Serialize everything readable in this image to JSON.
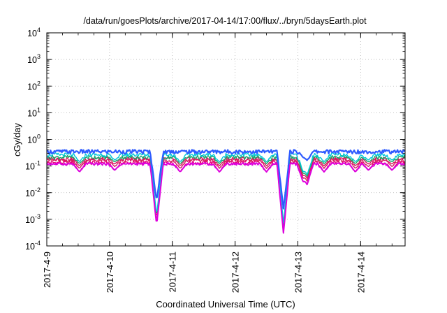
{
  "chart_data": {
    "type": "line",
    "title": "/data/run/goesPlots/archive/2017-04-14/17:00/flux/../bryn/5daysEarth.plot",
    "xlabel": "Coordinated Universal Time (UTC)",
    "ylabel": "cGy/day",
    "yscale": "log",
    "ylim": [
      0.0001,
      10000
    ],
    "y_ticks": [
      {
        "base": "10",
        "exp": "-4",
        "value": 0.0001
      },
      {
        "base": "10",
        "exp": "-3",
        "value": 0.001
      },
      {
        "base": "10",
        "exp": "-2",
        "value": 0.01
      },
      {
        "base": "10",
        "exp": "-1",
        "value": 0.1
      },
      {
        "base": "10",
        "exp": "0",
        "value": 1
      },
      {
        "base": "10",
        "exp": "1",
        "value": 10
      },
      {
        "base": "10",
        "exp": "2",
        "value": 100
      },
      {
        "base": "10",
        "exp": "3",
        "value": 1000
      },
      {
        "base": "10",
        "exp": "4",
        "value": 10000
      }
    ],
    "xlim": [
      "2017-04-09T00:00",
      "2017-04-14T17:00"
    ],
    "x_ticks": [
      "2017-4-9",
      "2017-4-10",
      "2017-4-11",
      "2017-4-12",
      "2017-4-13",
      "2017-4-14"
    ],
    "grid": true,
    "series_colors": [
      "#e8007a",
      "#d81b60",
      "#d81b60",
      "#1aa86b",
      "#00c8d8",
      "#2e5bff",
      "#dd00dd"
    ],
    "series_levels": [
      0.13,
      0.16,
      0.18,
      0.21,
      0.26,
      0.34
    ],
    "dips": [
      {
        "time": "2017-04-09T12:30",
        "min": 0.06
      },
      {
        "time": "2017-04-10T02:00",
        "min": 0.07
      },
      {
        "time": "2017-04-10T18:00",
        "min": 0.0006
      },
      {
        "time": "2017-04-11T03:00",
        "min": 0.06
      },
      {
        "time": "2017-04-11T18:00",
        "min": 0.06
      },
      {
        "time": "2017-04-12T12:00",
        "min": 0.06
      },
      {
        "time": "2017-04-12T18:30",
        "min": 0.0003
      },
      {
        "time": "2017-04-13T02:00",
        "min": 0.03
      },
      {
        "time": "2017-04-13T03:30",
        "min": 0.02
      },
      {
        "time": "2017-04-13T10:00",
        "min": 0.06
      },
      {
        "time": "2017-04-13T22:00",
        "min": 0.06
      },
      {
        "time": "2017-04-14T03:00",
        "min": 0.07
      },
      {
        "time": "2017-04-14T12:00",
        "min": 0.07
      }
    ]
  }
}
